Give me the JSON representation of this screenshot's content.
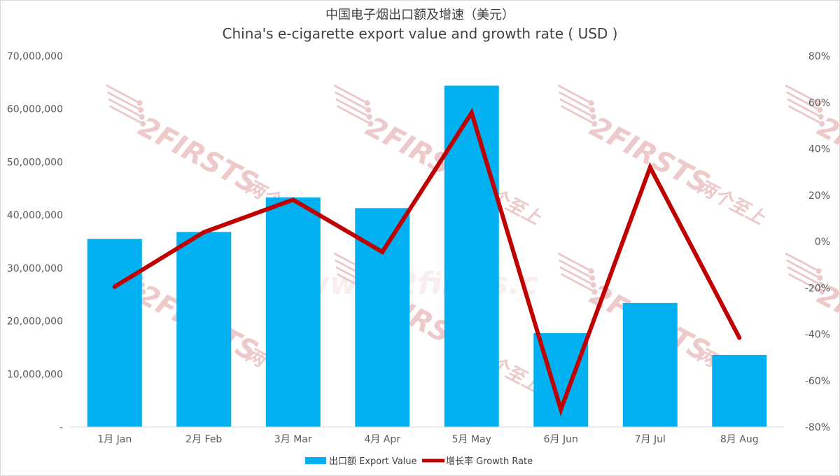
{
  "chart_data": {
    "type": "bar",
    "title": "中国电子烟出口额及增速（美元）",
    "subtitle": "China's e-cigarette export value and growth rate ( USD )",
    "categories": [
      "1月 Jan",
      "2月 Feb",
      "3月 Mar",
      "4月 Apr",
      "5月 May",
      "6月 Jun",
      "7月 Jul",
      "8月 Aug"
    ],
    "series": [
      {
        "name": "出口额 Export Value",
        "type": "bar",
        "axis": "left",
        "color": "#00b0f0",
        "values": [
          35500000,
          36800000,
          43300000,
          41300000,
          64400000,
          17700000,
          23400000,
          13600000
        ]
      },
      {
        "name": "增长率 Growth Rate",
        "type": "line",
        "axis": "right",
        "color": "#c00000",
        "values": [
          -19.5,
          4,
          18,
          -4.5,
          55.5,
          -72.5,
          32,
          -41.5
        ]
      }
    ],
    "y_left": {
      "ylim": [
        0,
        70000000
      ],
      "ticks": [
        0,
        10000000,
        20000000,
        30000000,
        40000000,
        50000000,
        60000000,
        70000000
      ],
      "tick_labels": [
        "-",
        "10,000,000",
        "20,000,000",
        "30,000,000",
        "40,000,000",
        "50,000,000",
        "60,000,000",
        "70,000,000"
      ]
    },
    "y_right": {
      "ylim": [
        -80,
        80
      ],
      "ticks": [
        -80,
        -60,
        -40,
        -20,
        0,
        20,
        40,
        60,
        80
      ],
      "tick_labels": [
        "-80%",
        "-60%",
        "-40%",
        "-20%",
        "0%",
        "20%",
        "40%",
        "60%",
        "80%"
      ]
    },
    "grid": false,
    "legend_position": "bottom",
    "watermark": {
      "text": "2FIRSTS",
      "cn": "两个至上",
      "url": "www.2firsts.c"
    }
  }
}
